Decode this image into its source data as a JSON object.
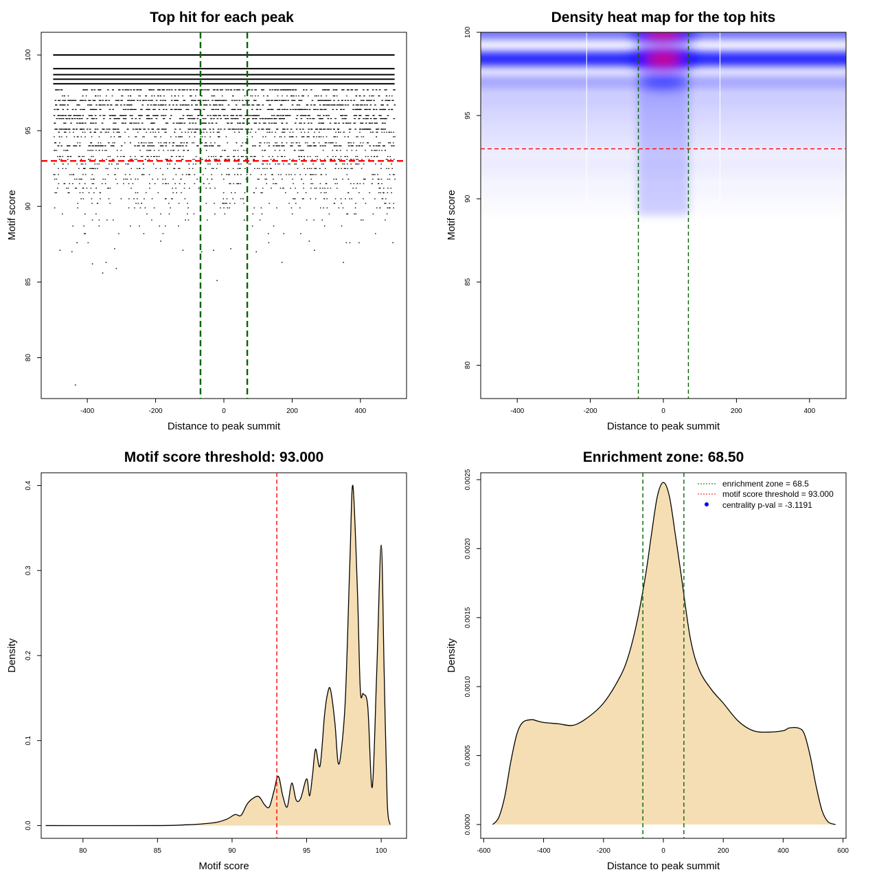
{
  "chart_data": [
    {
      "type": "scatter",
      "title": "Top hit for each peak",
      "xlabel": "Distance to peak summit",
      "ylabel": "Motif score",
      "xlim": [
        -535,
        535
      ],
      "ylim": [
        77.3,
        101.5
      ],
      "xticks": [
        -400,
        -200,
        0,
        200,
        400
      ],
      "yticks": [
        80,
        85,
        90,
        95,
        100
      ],
      "hlines": [
        {
          "y": 93.0,
          "color": "#ff0000",
          "style": "dashed"
        }
      ],
      "vlines": [
        {
          "x": -68.5,
          "color": "#006400",
          "style": "dashed"
        },
        {
          "x": 68.5,
          "color": "#006400",
          "style": "dashed"
        }
      ],
      "x_range": [
        -500,
        500
      ],
      "score_levels": [
        {
          "score": 100.0,
          "fraction": 1.0
        },
        {
          "score": 99.1,
          "fraction": 1.0
        },
        {
          "score": 98.7,
          "fraction": 1.0
        },
        {
          "score": 98.4,
          "fraction": 1.0
        },
        {
          "score": 98.1,
          "fraction": 1.0
        },
        {
          "score": 97.7,
          "fraction": 0.95
        },
        {
          "score": 97.3,
          "fraction": 0.6
        },
        {
          "score": 97.0,
          "fraction": 0.95
        },
        {
          "score": 96.7,
          "fraction": 0.8
        },
        {
          "score": 96.4,
          "fraction": 0.85
        },
        {
          "score": 96.0,
          "fraction": 0.9
        },
        {
          "score": 95.8,
          "fraction": 0.75
        },
        {
          "score": 95.5,
          "fraction": 0.7
        },
        {
          "score": 95.1,
          "fraction": 0.85
        },
        {
          "score": 94.9,
          "fraction": 0.55
        },
        {
          "score": 94.6,
          "fraction": 0.5
        },
        {
          "score": 94.2,
          "fraction": 0.6
        },
        {
          "score": 94.0,
          "fraction": 0.7
        },
        {
          "score": 93.7,
          "fraction": 0.45
        },
        {
          "score": 93.3,
          "fraction": 0.6
        },
        {
          "score": 93.1,
          "fraction": 0.5
        },
        {
          "score": 92.8,
          "fraction": 0.4
        },
        {
          "score": 92.5,
          "fraction": 0.45
        },
        {
          "score": 92.1,
          "fraction": 0.4
        },
        {
          "score": 91.8,
          "fraction": 0.35
        },
        {
          "score": 91.5,
          "fraction": 0.35
        },
        {
          "score": 91.2,
          "fraction": 0.3
        },
        {
          "score": 90.9,
          "fraction": 0.25
        },
        {
          "score": 90.5,
          "fraction": 0.25
        },
        {
          "score": 90.2,
          "fraction": 0.2
        },
        {
          "score": 89.9,
          "fraction": 0.18
        },
        {
          "score": 89.5,
          "fraction": 0.12
        },
        {
          "score": 89.1,
          "fraction": 0.1
        },
        {
          "score": 88.7,
          "fraction": 0.07
        },
        {
          "score": 88.2,
          "fraction": 0.05
        },
        {
          "score": 87.6,
          "fraction": 0.03
        }
      ],
      "sparse_points": [
        [
          -480,
          87.1
        ],
        [
          -445,
          87.0
        ],
        [
          -430,
          87.6
        ],
        [
          -385,
          86.2
        ],
        [
          -355,
          85.6
        ],
        [
          -345,
          86.3
        ],
        [
          -315,
          85.9
        ],
        [
          -320,
          87.2
        ],
        [
          -185,
          87.7
        ],
        [
          -120,
          87.1
        ],
        [
          -65,
          87.0
        ],
        [
          -30,
          87.1
        ],
        [
          -20,
          85.1
        ],
        [
          20,
          87.2
        ],
        [
          95,
          87.0
        ],
        [
          170,
          86.3
        ],
        [
          250,
          87.7
        ],
        [
          265,
          87.1
        ],
        [
          350,
          86.3
        ],
        [
          495,
          87.6
        ],
        [
          -435,
          78.2
        ]
      ]
    },
    {
      "type": "heatmap",
      "title": "Density heat map for the top hits",
      "xlabel": "Distance to peak summit",
      "ylabel": "Motif score",
      "xlim": [
        -500,
        500
      ],
      "ylim": [
        78,
        100
      ],
      "xticks": [
        -400,
        -200,
        0,
        200,
        400
      ],
      "yticks": [
        80,
        85,
        90,
        95,
        100
      ],
      "colors": [
        "#ffffff",
        "#0000ff",
        "#ff0000"
      ],
      "hlines": [
        {
          "y": 93.0,
          "color": "#ff0000",
          "style": "dashed"
        }
      ],
      "vlines": [
        {
          "x": -68.5,
          "color": "#006400",
          "style": "dashed"
        },
        {
          "x": 68.5,
          "color": "#006400",
          "style": "dashed"
        }
      ],
      "bands": [
        {
          "score": 100.0,
          "intensity": 0.55
        },
        {
          "score": 98.4,
          "intensity": 0.85
        },
        {
          "score": 97.0,
          "intensity": 0.35
        },
        {
          "score": 96.0,
          "intensity": 0.2
        },
        {
          "score": 95.1,
          "intensity": 0.16
        },
        {
          "score": 94.2,
          "intensity": 0.13
        },
        {
          "score": 93.3,
          "intensity": 0.1
        },
        {
          "score": 92.3,
          "intensity": 0.07
        },
        {
          "score": 91.5,
          "intensity": 0.06
        },
        {
          "score": 90.5,
          "intensity": 0.04
        },
        {
          "score": 89.6,
          "intensity": 0.02
        }
      ],
      "hotspots": [
        {
          "x": 0,
          "y": 98.4,
          "intensity": 1.0
        },
        {
          "x": 0,
          "y": 100.0,
          "intensity": 0.9
        },
        {
          "x": 0,
          "y": 97.0,
          "intensity": 0.55
        }
      ],
      "white_vlines": [
        -210,
        155
      ]
    },
    {
      "type": "area",
      "title": "Motif score threshold: 93.000",
      "xlabel": "Motif score",
      "ylabel": "Density",
      "xlim": [
        77.2,
        101.7
      ],
      "ylim": [
        -0.015,
        0.415
      ],
      "xticks": [
        80,
        85,
        90,
        95,
        100
      ],
      "yticks": [
        0.0,
        0.1,
        0.2,
        0.3,
        0.4
      ],
      "ytick_labels": [
        "0.0",
        "0.1",
        "0.2",
        "0.3",
        "0.4"
      ],
      "vlines": [
        {
          "x": 93.0,
          "color": "#ff0000",
          "style": "dashed"
        }
      ],
      "fill": "#f5deb3",
      "x": [
        77.5,
        85,
        87,
        88,
        89,
        89.7,
        90.2,
        90.6,
        91.0,
        91.4,
        91.8,
        92.2,
        92.5,
        92.8,
        93.1,
        93.4,
        93.7,
        94.0,
        94.3,
        94.6,
        95.0,
        95.2,
        95.4,
        95.6,
        95.9,
        96.2,
        96.4,
        96.6,
        96.9,
        97.1,
        97.3,
        97.6,
        97.9,
        98.1,
        98.4,
        98.6,
        98.8,
        99.1,
        99.4,
        99.7,
        100.0,
        100.2,
        100.4,
        100.6
      ],
      "y": [
        0.0,
        0.0,
        0.001,
        0.002,
        0.004,
        0.008,
        0.013,
        0.012,
        0.025,
        0.032,
        0.034,
        0.024,
        0.022,
        0.04,
        0.058,
        0.035,
        0.022,
        0.05,
        0.03,
        0.032,
        0.055,
        0.035,
        0.06,
        0.09,
        0.07,
        0.13,
        0.155,
        0.16,
        0.12,
        0.075,
        0.085,
        0.15,
        0.31,
        0.4,
        0.28,
        0.16,
        0.155,
        0.14,
        0.045,
        0.18,
        0.33,
        0.18,
        0.03,
        0.001
      ]
    },
    {
      "type": "area",
      "title": "Enrichment zone: 68.50",
      "xlabel": "Distance to peak summit",
      "ylabel": "Density",
      "xlim": [
        -610,
        610
      ],
      "ylim": [
        -0.0001,
        0.00255
      ],
      "xticks": [
        -600,
        -400,
        -200,
        0,
        200,
        400,
        600
      ],
      "yticks": [
        0.0,
        0.0005,
        0.001,
        0.0015,
        0.002,
        0.0025
      ],
      "ytick_labels": [
        "0.0000",
        "0.0005",
        "0.0010",
        "0.0015",
        "0.0020",
        "0.0025"
      ],
      "vlines": [
        {
          "x": -68.5,
          "color": "#006400",
          "style": "dashed"
        },
        {
          "x": 68.5,
          "color": "#006400",
          "style": "dashed"
        }
      ],
      "fill": "#f5deb3",
      "x": [
        -570,
        -550,
        -530,
        -510,
        -490,
        -470,
        -440,
        -420,
        -400,
        -350,
        -300,
        -250,
        -200,
        -150,
        -120,
        -90,
        -60,
        -40,
        -20,
        0,
        20,
        40,
        60,
        90,
        120,
        160,
        200,
        250,
        300,
        350,
        400,
        420,
        450,
        470,
        490,
        510,
        530,
        550,
        575
      ],
      "y": [
        0.0,
        5e-05,
        0.0002,
        0.00045,
        0.00065,
        0.00074,
        0.00076,
        0.00075,
        0.00074,
        0.00073,
        0.00072,
        0.00078,
        0.00088,
        0.00105,
        0.0012,
        0.00145,
        0.0018,
        0.0021,
        0.00238,
        0.00248,
        0.00238,
        0.0021,
        0.0018,
        0.00135,
        0.00112,
        0.00098,
        0.00088,
        0.00075,
        0.00068,
        0.00067,
        0.00068,
        0.0007,
        0.0007,
        0.00066,
        0.0005,
        0.00028,
        0.0001,
        2e-05,
        0.0
      ],
      "legend": {
        "position": "top-right",
        "items": [
          {
            "label": "enrichment zone = 68.5",
            "color": "#006400",
            "style": "dotted-line"
          },
          {
            "label": "motif score threshold = 93.000",
            "color": "#ff0000",
            "style": "dotted-line"
          },
          {
            "label": "centrality p-val = -3.1191",
            "color": "#0000ff",
            "style": "point"
          }
        ]
      }
    }
  ]
}
